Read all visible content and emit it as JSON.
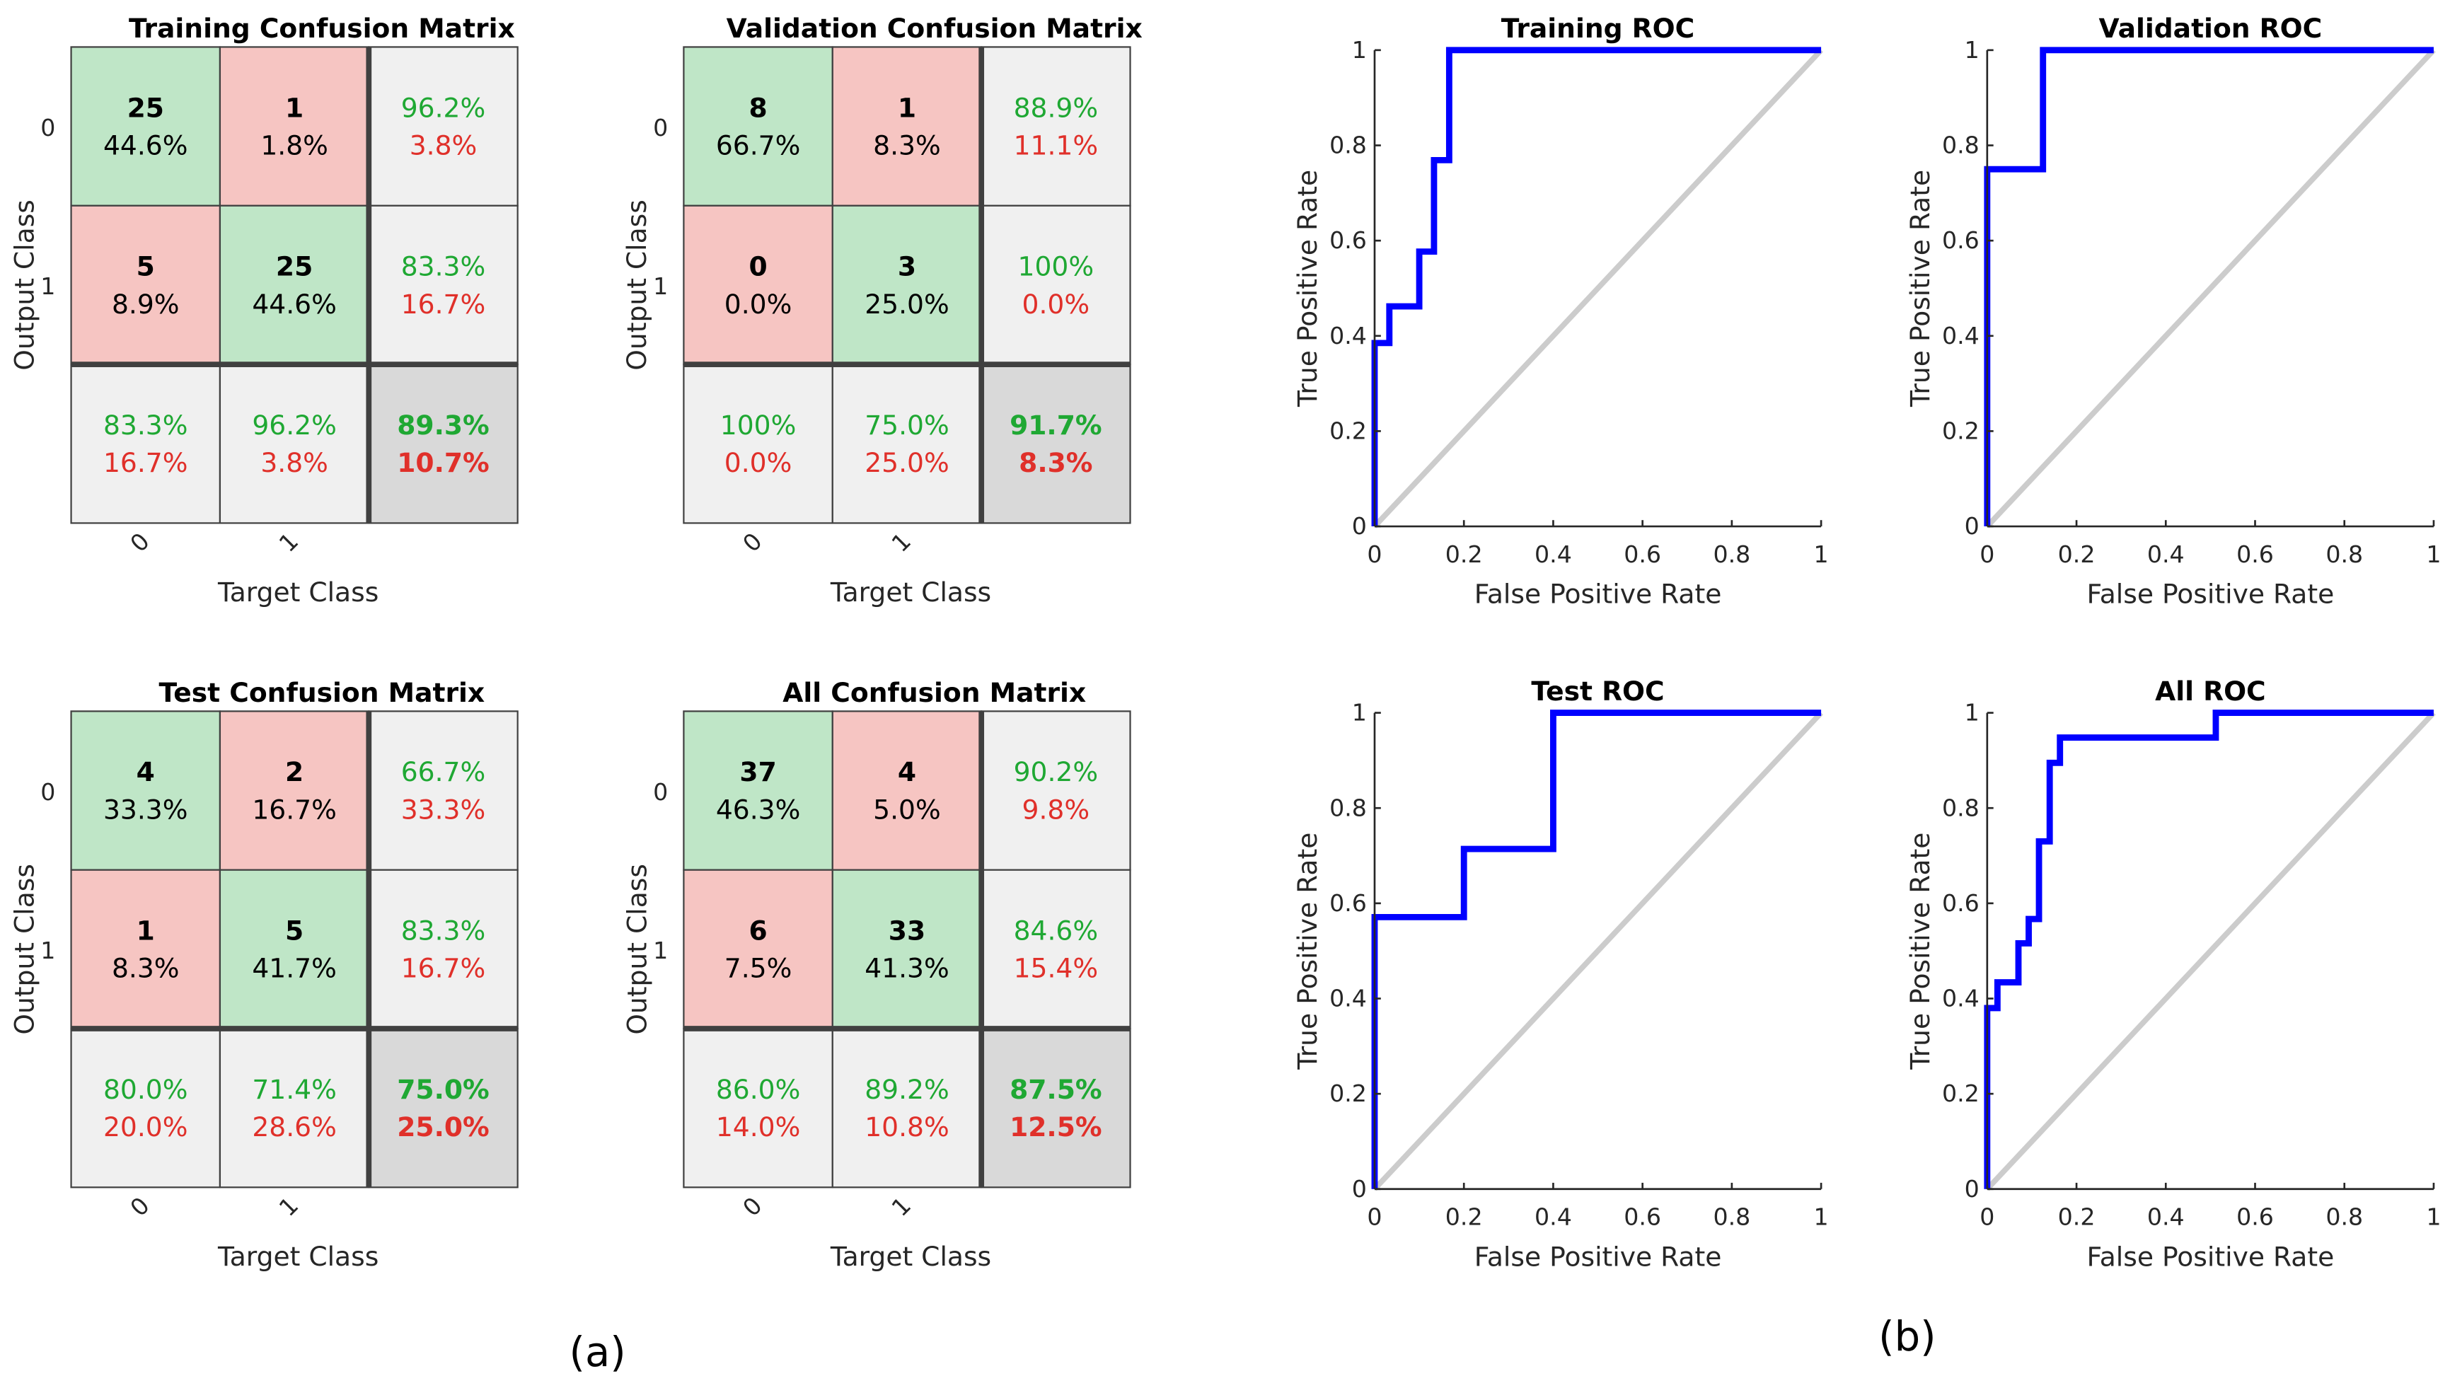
{
  "panel_labels": {
    "a": "(a)",
    "b": "(b)"
  },
  "colors": {
    "correct": "#bfe6c7",
    "incorrect": "#f6c5c2",
    "summary": "#f0f0f0",
    "overall": "#d9d9d9",
    "green_text": "#1fa833",
    "red_text": "#e0302a",
    "roc_line": "#0000ff",
    "diagonal": "#cccccc"
  },
  "confusion_matrices": [
    {
      "title": "Training Confusion Matrix",
      "output_label": "Output Class",
      "target_label": "Target Class",
      "class_labels": [
        "0",
        "1"
      ],
      "cells": [
        [
          [
            "25",
            "44.6%"
          ],
          [
            "1",
            "1.8%"
          ]
        ],
        [
          [
            "5",
            "8.9%"
          ],
          [
            "25",
            "44.6%"
          ]
        ]
      ],
      "row_summary": [
        [
          "96.2%",
          "3.8%"
        ],
        [
          "83.3%",
          "16.7%"
        ]
      ],
      "col_summary": [
        [
          "83.3%",
          "16.7%"
        ],
        [
          "96.2%",
          "3.8%"
        ]
      ],
      "overall": [
        "89.3%",
        "10.7%"
      ]
    },
    {
      "title": "Validation Confusion Matrix",
      "output_label": "Output Class",
      "target_label": "Target Class",
      "class_labels": [
        "0",
        "1"
      ],
      "cells": [
        [
          [
            "8",
            "66.7%"
          ],
          [
            "1",
            "8.3%"
          ]
        ],
        [
          [
            "0",
            "0.0%"
          ],
          [
            "3",
            "25.0%"
          ]
        ]
      ],
      "row_summary": [
        [
          "88.9%",
          "11.1%"
        ],
        [
          "100%",
          "0.0%"
        ]
      ],
      "col_summary": [
        [
          "100%",
          "0.0%"
        ],
        [
          "75.0%",
          "25.0%"
        ]
      ],
      "overall": [
        "91.7%",
        "8.3%"
      ]
    },
    {
      "title": "Test Confusion Matrix",
      "output_label": "Output Class",
      "target_label": "Target Class",
      "class_labels": [
        "0",
        "1"
      ],
      "cells": [
        [
          [
            "4",
            "33.3%"
          ],
          [
            "2",
            "16.7%"
          ]
        ],
        [
          [
            "1",
            "8.3%"
          ],
          [
            "5",
            "41.7%"
          ]
        ]
      ],
      "row_summary": [
        [
          "66.7%",
          "33.3%"
        ],
        [
          "83.3%",
          "16.7%"
        ]
      ],
      "col_summary": [
        [
          "80.0%",
          "20.0%"
        ],
        [
          "71.4%",
          "28.6%"
        ]
      ],
      "overall": [
        "75.0%",
        "25.0%"
      ]
    },
    {
      "title": "All Confusion Matrix",
      "output_label": "Output Class",
      "target_label": "Target Class",
      "class_labels": [
        "0",
        "1"
      ],
      "cells": [
        [
          [
            "37",
            "46.3%"
          ],
          [
            "4",
            "5.0%"
          ]
        ],
        [
          [
            "6",
            "7.5%"
          ],
          [
            "33",
            "41.3%"
          ]
        ]
      ],
      "row_summary": [
        [
          "90.2%",
          "9.8%"
        ],
        [
          "84.6%",
          "15.4%"
        ]
      ],
      "col_summary": [
        [
          "86.0%",
          "14.0%"
        ],
        [
          "89.2%",
          "10.8%"
        ]
      ],
      "overall": [
        "87.5%",
        "12.5%"
      ]
    }
  ],
  "chart_data": [
    {
      "type": "line",
      "title": "Training ROC",
      "xlabel": "False Positive Rate",
      "ylabel": "True Positive Rate",
      "xlim": [
        0,
        1
      ],
      "ylim": [
        0,
        1
      ],
      "ticks": [
        "0",
        "0.2",
        "0.4",
        "0.6",
        "0.8",
        "1"
      ],
      "yticks": [
        "0",
        "0.2",
        "0.4",
        "0.6",
        "0.8",
        "1"
      ],
      "x": [
        0,
        0,
        0.033,
        0.033,
        0.1,
        0.1,
        0.133,
        0.133,
        0.167,
        0.167,
        1
      ],
      "y": [
        0,
        0.385,
        0.385,
        0.462,
        0.462,
        0.577,
        0.577,
        0.769,
        0.769,
        1,
        1
      ]
    },
    {
      "type": "line",
      "title": "Validation ROC",
      "xlabel": "False Positive Rate",
      "ylabel": "True Positive Rate",
      "xlim": [
        0,
        1
      ],
      "ylim": [
        0,
        1
      ],
      "ticks": [
        "0",
        "0.2",
        "0.4",
        "0.6",
        "0.8",
        "1"
      ],
      "yticks": [
        "0",
        "0.2",
        "0.4",
        "0.6",
        "0.8",
        "1"
      ],
      "x": [
        0,
        0,
        0.125,
        0.125,
        1
      ],
      "y": [
        0,
        0.75,
        0.75,
        1,
        1
      ]
    },
    {
      "type": "line",
      "title": "Test ROC",
      "xlabel": "False Positive Rate",
      "ylabel": "True Positive Rate",
      "xlim": [
        0,
        1
      ],
      "ylim": [
        0,
        1
      ],
      "ticks": [
        "0",
        "0.2",
        "0.4",
        "0.6",
        "0.8",
        "1"
      ],
      "yticks": [
        "0",
        "0.2",
        "0.4",
        "0.6",
        "0.8",
        "1"
      ],
      "x": [
        0,
        0,
        0.2,
        0.2,
        0.4,
        0.4,
        1
      ],
      "y": [
        0,
        0.571,
        0.571,
        0.714,
        0.714,
        1,
        1
      ]
    },
    {
      "type": "line",
      "title": "All ROC",
      "xlabel": "False Positive Rate",
      "ylabel": "True Positive Rate",
      "xlim": [
        0,
        1
      ],
      "ylim": [
        0,
        1
      ],
      "ticks": [
        "0",
        "0.2",
        "0.4",
        "0.6",
        "0.8",
        "1"
      ],
      "yticks": [
        "0",
        "0.2",
        "0.4",
        "0.6",
        "0.8",
        "1"
      ],
      "x": [
        0,
        0,
        0.023,
        0.023,
        0.07,
        0.07,
        0.093,
        0.093,
        0.116,
        0.116,
        0.14,
        0.14,
        0.163,
        0.163,
        0.512,
        0.512,
        1
      ],
      "y": [
        0,
        0.38,
        0.38,
        0.434,
        0.434,
        0.516,
        0.516,
        0.567,
        0.567,
        0.73,
        0.73,
        0.895,
        0.895,
        0.948,
        0.948,
        1,
        1
      ]
    }
  ]
}
